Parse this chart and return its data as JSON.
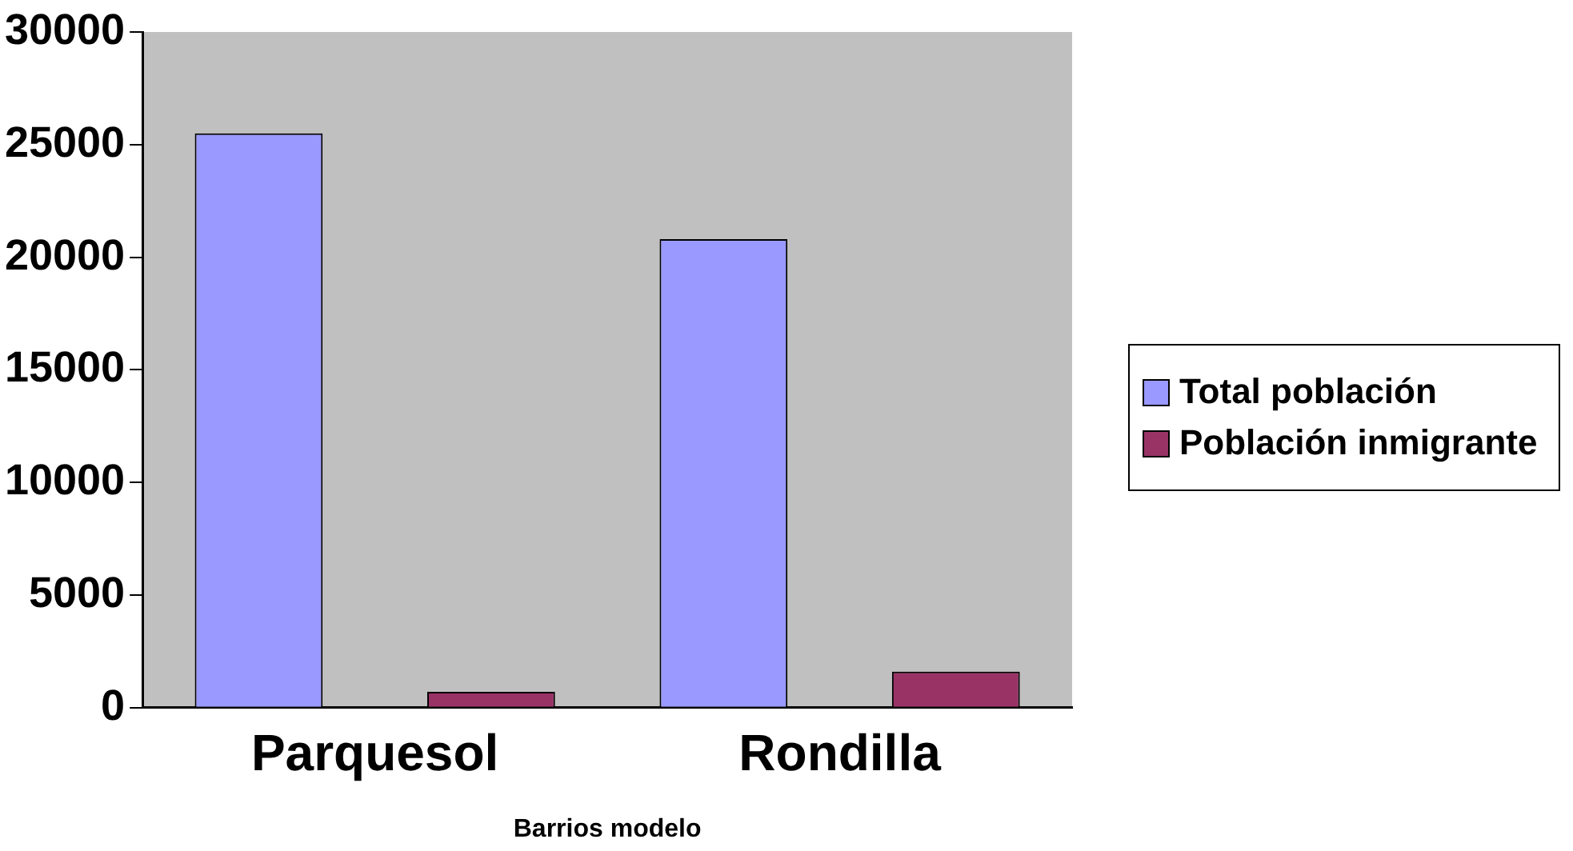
{
  "chart_data": {
    "type": "bar",
    "xlabel": "Barrios modelo",
    "categories": [
      "Parquesol",
      "Rondilla"
    ],
    "series": [
      {
        "name": "Total población",
        "color": "#9999ff",
        "values": [
          25500,
          20800
        ]
      },
      {
        "name": "Población inmigrante",
        "color": "#993366",
        "values": [
          700,
          1600
        ]
      }
    ],
    "ylim": [
      0,
      30000
    ],
    "yticks": [
      0,
      5000,
      10000,
      15000,
      20000,
      25000,
      30000
    ],
    "grid": false,
    "legend": "right"
  }
}
